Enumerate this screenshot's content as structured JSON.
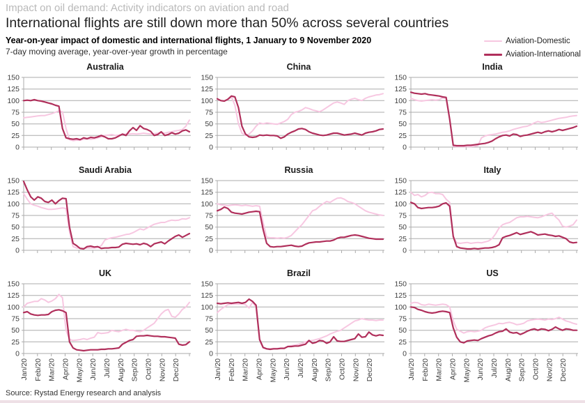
{
  "header": {
    "kicker": "Impact on oil demand: Activity indicators on aviation and road",
    "title": "International flights are still down more than 50% across several countries",
    "subtitle_bold": "Year-on-year impact of domestic and international flights, 1 January to 9 November 2020",
    "subtitle": "7-day moving average, year-over-year growth in percentage"
  },
  "legend": {
    "items": [
      {
        "label": "Aviation-Domestic",
        "color": "#f7c7e1"
      },
      {
        "label": "Aviation-International",
        "color": "#b02f5b"
      }
    ]
  },
  "source": "Source: Rystad Energy research and analysis",
  "chart_data": {
    "type": "line",
    "grid": true,
    "legend_position": "top-right",
    "ylim": [
      0,
      150
    ],
    "yticks": [
      0,
      25,
      50,
      75,
      100,
      125,
      150
    ],
    "x_tick_labels": [
      "Jan/20",
      "Feb/20",
      "Mar/20",
      "Apr/20",
      "May/20",
      "Jun/20",
      "Jul/20",
      "Aug/20",
      "Sep/20",
      "Oct/20",
      "Nov/20",
      "Dec/20"
    ],
    "sampling_note": "48 evenly spaced samples, Jan 2020 - Dec 2020, year-over-year % level",
    "series_names": [
      "Aviation-Domestic",
      "Aviation-International"
    ],
    "panels": [
      {
        "title": "Australia",
        "domestic": [
          63,
          64,
          65,
          66,
          67,
          68,
          68,
          70,
          72,
          75,
          78,
          76,
          40,
          16,
          14,
          15,
          15,
          17,
          18,
          17,
          18,
          20,
          22,
          25,
          26,
          27,
          25,
          26,
          27,
          28,
          28,
          29,
          28,
          29,
          30,
          29,
          28,
          29,
          30,
          31,
          30,
          32,
          33,
          35,
          36,
          38,
          45,
          58
        ],
        "international": [
          100,
          101,
          100,
          102,
          100,
          99,
          97,
          95,
          93,
          90,
          88,
          40,
          20,
          18,
          17,
          18,
          16,
          20,
          18,
          21,
          20,
          22,
          25,
          22,
          18,
          18,
          20,
          24,
          28,
          25,
          35,
          42,
          36,
          46,
          40,
          38,
          34,
          25,
          27,
          33,
          25,
          27,
          31,
          28,
          30,
          35,
          37,
          33
        ]
      },
      {
        "title": "China",
        "domestic": [
          103,
          100,
          99,
          102,
          108,
          90,
          50,
          30,
          25,
          28,
          35,
          45,
          52,
          50,
          52,
          51,
          50,
          49,
          52,
          55,
          60,
          70,
          75,
          77,
          80,
          85,
          83,
          80,
          78,
          76,
          80,
          85,
          90,
          95,
          97,
          95,
          92,
          100,
          103,
          105,
          102,
          100,
          105,
          108,
          110,
          112,
          113,
          115
        ],
        "international": [
          104,
          100,
          99,
          103,
          110,
          108,
          85,
          45,
          28,
          22,
          21,
          22,
          26,
          25,
          26,
          25,
          25,
          24,
          19,
          22,
          28,
          32,
          35,
          39,
          40,
          38,
          33,
          30,
          28,
          26,
          25,
          26,
          28,
          30,
          30,
          28,
          26,
          27,
          28,
          30,
          28,
          26,
          30,
          32,
          33,
          35,
          38,
          39
        ]
      },
      {
        "title": "India",
        "domestic": [
          105,
          102,
          100,
          99,
          100,
          101,
          102,
          101,
          102,
          106,
          105,
          60,
          2,
          1,
          1,
          1,
          1,
          1,
          2,
          3,
          20,
          24,
          26,
          27,
          28,
          30,
          32,
          33,
          35,
          38,
          40,
          42,
          44,
          45,
          48,
          52,
          55,
          53,
          54,
          56,
          58,
          60,
          62,
          63,
          64,
          66,
          67,
          68
        ],
        "international": [
          118,
          116,
          115,
          114,
          115,
          113,
          112,
          111,
          110,
          108,
          107,
          60,
          4,
          3,
          3,
          3,
          4,
          4,
          5,
          6,
          7,
          8,
          10,
          13,
          18,
          22,
          25,
          26,
          24,
          28,
          27,
          23,
          25,
          26,
          28,
          30,
          32,
          30,
          33,
          35,
          33,
          35,
          38,
          36,
          38,
          40,
          42,
          45
        ]
      },
      {
        "title": "Saudi Arabia",
        "domestic": [
          122,
          110,
          100,
          97,
          95,
          92,
          90,
          88,
          88,
          89,
          90,
          91,
          90,
          40,
          8,
          5,
          5,
          4,
          5,
          5,
          5,
          6,
          10,
          22,
          25,
          27,
          28,
          30,
          32,
          34,
          35,
          38,
          42,
          46,
          44,
          48,
          52,
          56,
          58,
          60,
          60,
          63,
          65,
          64,
          65,
          68,
          67,
          70
        ],
        "international": [
          148,
          130,
          115,
          108,
          115,
          112,
          105,
          103,
          108,
          100,
          107,
          112,
          111,
          50,
          15,
          10,
          4,
          3,
          8,
          9,
          7,
          8,
          4,
          5,
          5,
          6,
          6,
          7,
          13,
          15,
          14,
          13,
          14,
          12,
          15,
          13,
          8,
          14,
          16,
          18,
          14,
          20,
          25,
          30,
          33,
          28,
          32,
          36
        ]
      },
      {
        "title": "Russia",
        "domestic": [
          100,
          98,
          97,
          96,
          97,
          98,
          97,
          96,
          97,
          96,
          95,
          96,
          95,
          60,
          28,
          27,
          27,
          26,
          27,
          26,
          28,
          32,
          40,
          48,
          55,
          65,
          75,
          85,
          88,
          95,
          100,
          105,
          103,
          108,
          112,
          113,
          110,
          105,
          103,
          100,
          95,
          90,
          85,
          82,
          80,
          78,
          76,
          75
        ],
        "international": [
          85,
          88,
          93,
          90,
          82,
          80,
          79,
          78,
          80,
          82,
          83,
          84,
          83,
          45,
          15,
          8,
          7,
          8,
          8,
          9,
          10,
          11,
          9,
          8,
          9,
          13,
          16,
          17,
          18,
          18,
          19,
          20,
          20,
          22,
          26,
          28,
          28,
          30,
          32,
          33,
          32,
          30,
          28,
          26,
          25,
          24,
          24,
          24
        ]
      },
      {
        "title": "Italy",
        "domestic": [
          125,
          118,
          120,
          115,
          118,
          124,
          125,
          122,
          122,
          120,
          110,
          103,
          30,
          16,
          15,
          16,
          17,
          15,
          16,
          17,
          16,
          18,
          20,
          25,
          35,
          48,
          55,
          58,
          60,
          65,
          70,
          72,
          72,
          73,
          72,
          71,
          70,
          72,
          75,
          78,
          80,
          72,
          65,
          52,
          50,
          52,
          55,
          65
        ],
        "international": [
          103,
          100,
          92,
          90,
          91,
          92,
          92,
          93,
          95,
          100,
          102,
          95,
          30,
          8,
          5,
          4,
          3,
          3,
          4,
          3,
          4,
          5,
          5,
          6,
          8,
          12,
          27,
          30,
          32,
          35,
          38,
          34,
          36,
          38,
          40,
          37,
          33,
          34,
          35,
          33,
          32,
          30,
          31,
          28,
          25,
          18,
          16,
          17
        ]
      },
      {
        "title": "UK",
        "domestic": [
          100,
          108,
          110,
          112,
          112,
          118,
          115,
          110,
          113,
          118,
          127,
          120,
          50,
          30,
          28,
          29,
          30,
          32,
          30,
          33,
          35,
          45,
          43,
          44,
          45,
          50,
          48,
          47,
          50,
          52,
          50,
          50,
          48,
          47,
          50,
          55,
          60,
          65,
          75,
          85,
          92,
          95,
          80,
          78,
          85,
          95,
          100,
          110
        ],
        "international": [
          88,
          90,
          85,
          83,
          82,
          83,
          83,
          84,
          90,
          93,
          94,
          92,
          88,
          25,
          12,
          8,
          7,
          6,
          7,
          8,
          8,
          8,
          9,
          9,
          10,
          10,
          11,
          12,
          20,
          24,
          28,
          30,
          37,
          38,
          38,
          39,
          38,
          37,
          37,
          36,
          36,
          35,
          34,
          33,
          20,
          18,
          19,
          25
        ]
      },
      {
        "title": "Brazil",
        "domestic": [
          88,
          95,
          100,
          105,
          106,
          107,
          106,
          107,
          105,
          98,
          110,
          100,
          28,
          12,
          10,
          10,
          11,
          11,
          12,
          12,
          15,
          17,
          18,
          20,
          22,
          25,
          27,
          28,
          30,
          32,
          35,
          38,
          42,
          45,
          48,
          50,
          55,
          60,
          65,
          70,
          72,
          75,
          73,
          72,
          72,
          71,
          72,
          72
        ],
        "international": [
          108,
          107,
          108,
          109,
          108,
          109,
          110,
          108,
          110,
          117,
          112,
          104,
          30,
          13,
          10,
          9,
          10,
          10,
          11,
          11,
          15,
          15,
          16,
          16,
          18,
          20,
          28,
          22,
          24,
          28,
          27,
          22,
          25,
          36,
          27,
          26,
          26,
          28,
          30,
          32,
          42,
          35,
          36,
          46,
          40,
          38,
          40,
          39
        ]
      },
      {
        "title": "US",
        "domestic": [
          108,
          110,
          109,
          105,
          104,
          106,
          105,
          104,
          105,
          106,
          105,
          100,
          70,
          52,
          48,
          44,
          47,
          48,
          47,
          48,
          50,
          55,
          58,
          60,
          62,
          65,
          64,
          66,
          67,
          65,
          62,
          63,
          65,
          70,
          72,
          73,
          74,
          73,
          72,
          74,
          73,
          75,
          78,
          74,
          70,
          68,
          65,
          63
        ],
        "international": [
          100,
          99,
          95,
          93,
          90,
          88,
          87,
          88,
          90,
          91,
          90,
          88,
          55,
          35,
          25,
          23,
          27,
          28,
          29,
          28,
          32,
          35,
          38,
          40,
          44,
          47,
          48,
          53,
          46,
          44,
          45,
          41,
          44,
          48,
          51,
          53,
          50,
          53,
          52,
          49,
          52,
          57,
          53,
          50,
          53,
          52,
          50,
          50
        ]
      }
    ]
  }
}
